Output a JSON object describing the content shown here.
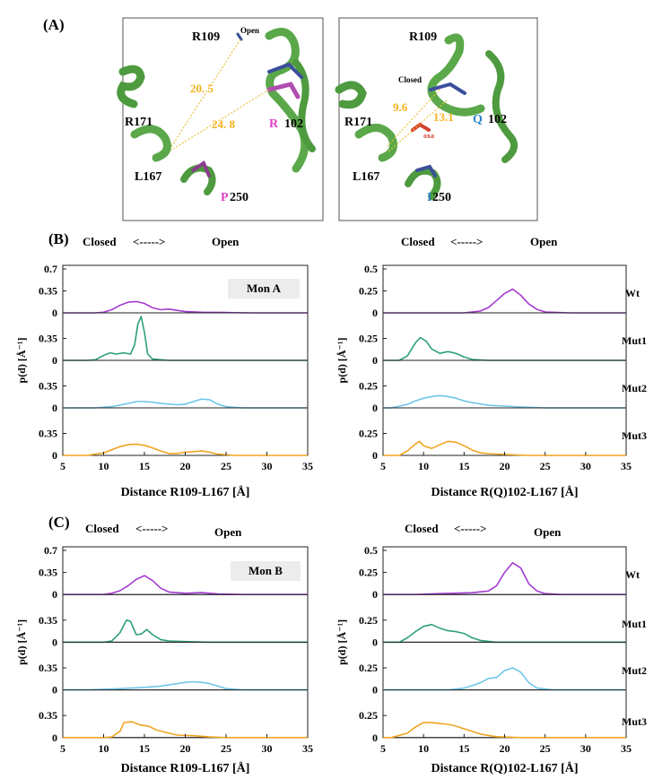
{
  "panels": {
    "a_label": "(A)",
    "b_label": "(B)",
    "c_label": "(C)"
  },
  "headers": {
    "closed": "Closed",
    "open": "Open",
    "arrow": "<----->"
  },
  "structures": {
    "left": {
      "res_top": "R109",
      "state": "Open",
      "res_mid": "R171",
      "res_low": "L167",
      "res_102_letter": "R",
      "res_102_num": "102",
      "res_250_letter": "P",
      "res_250_num": "250",
      "d1": "20. 5",
      "d2": "24. 8"
    },
    "right": {
      "res_top": "R109",
      "state": "Closed",
      "res_mid": "R171",
      "res_low": "L167",
      "res_102_letter": "Q",
      "res_102_num": "102",
      "res_250_letter": "I",
      "res_250_num": "250",
      "d1": "9.6",
      "d2": "13.1",
      "ligand": "oxa"
    }
  },
  "row_labels": [
    "Wt",
    "Mut1",
    "Mut2",
    "Mut3"
  ],
  "colors": {
    "Wt": "#a43bd0",
    "Mut1": "#2ea07a",
    "Mut2": "#6fc6ea",
    "Mut3": "#efa521"
  },
  "chart_data": [
    {
      "type": "line",
      "panel": "B-left",
      "badge": "Mon A",
      "xlabel": "Distance R109-L167 [Å]",
      "ylabel": "p(d) [Å⁻¹]",
      "xlim": [
        5,
        35
      ],
      "xticks": [
        "5",
        "10",
        "15",
        "20",
        "25",
        "30",
        "35"
      ],
      "top_yticks": [
        "0.7",
        "0.35",
        "0"
      ],
      "yticks": [
        "0.35",
        "0"
      ],
      "ymax_top": 0.7,
      "ymax": 0.7,
      "series": [
        {
          "name": "Wt",
          "points": [
            [
              9,
              0
            ],
            [
              10,
              0.01
            ],
            [
              11,
              0.05
            ],
            [
              12,
              0.12
            ],
            [
              13,
              0.17
            ],
            [
              14,
              0.18
            ],
            [
              15,
              0.15
            ],
            [
              16,
              0.08
            ],
            [
              17,
              0.05
            ],
            [
              18,
              0.06
            ],
            [
              19,
              0.04
            ],
            [
              20,
              0.02
            ],
            [
              22,
              0.01
            ],
            [
              25,
              0.005
            ],
            [
              28,
              0
            ]
          ]
        },
        {
          "name": "Mut1",
          "points": [
            [
              8,
              0
            ],
            [
              9,
              0.01
            ],
            [
              10,
              0.08
            ],
            [
              10.8,
              0.12
            ],
            [
              11.5,
              0.1
            ],
            [
              12.5,
              0.12
            ],
            [
              13.3,
              0.1
            ],
            [
              13.8,
              0.25
            ],
            [
              14.2,
              0.58
            ],
            [
              14.6,
              0.7
            ],
            [
              15,
              0.45
            ],
            [
              15.4,
              0.1
            ],
            [
              16,
              0.02
            ],
            [
              18,
              0
            ],
            [
              22,
              0
            ]
          ]
        },
        {
          "name": "Mut2",
          "points": [
            [
              9,
              0
            ],
            [
              11,
              0.02
            ],
            [
              13,
              0.07
            ],
            [
              14,
              0.1
            ],
            [
              15,
              0.1
            ],
            [
              16,
              0.09
            ],
            [
              17,
              0.07
            ],
            [
              19,
              0.05
            ],
            [
              20,
              0.06
            ],
            [
              21,
              0.1
            ],
            [
              22,
              0.14
            ],
            [
              23,
              0.13
            ],
            [
              24,
              0.06
            ],
            [
              25,
              0.02
            ],
            [
              27,
              0
            ]
          ]
        },
        {
          "name": "Mut3",
          "points": [
            [
              8,
              0
            ],
            [
              10,
              0.04
            ],
            [
              11,
              0.09
            ],
            [
              12,
              0.14
            ],
            [
              13,
              0.17
            ],
            [
              14,
              0.18
            ],
            [
              15,
              0.16
            ],
            [
              16,
              0.12
            ],
            [
              17,
              0.07
            ],
            [
              18,
              0.03
            ],
            [
              19,
              0.03
            ],
            [
              20,
              0.05
            ],
            [
              21,
              0.06
            ],
            [
              22,
              0.07
            ],
            [
              23,
              0.05
            ],
            [
              24,
              0.02
            ],
            [
              26,
              0
            ]
          ]
        }
      ]
    },
    {
      "type": "line",
      "panel": "B-right",
      "xlabel": "Distance R(Q)102-L167 [Å]",
      "ylabel": "p(d) [Å⁻¹]",
      "xlim": [
        5,
        35
      ],
      "xticks": [
        "5",
        "10",
        "15",
        "20",
        "25",
        "30",
        "35"
      ],
      "top_yticks": [
        "0.5",
        "0.25",
        "0"
      ],
      "yticks": [
        "0.25",
        "0"
      ],
      "ymax_top": 0.5,
      "ymax": 0.5,
      "series": [
        {
          "name": "Wt",
          "points": [
            [
              15,
              0
            ],
            [
              17,
              0.02
            ],
            [
              18,
              0.06
            ],
            [
              19,
              0.14
            ],
            [
              20,
              0.22
            ],
            [
              21,
              0.27
            ],
            [
              22,
              0.2
            ],
            [
              23,
              0.1
            ],
            [
              24,
              0.04
            ],
            [
              25,
              0.01
            ],
            [
              28,
              0
            ]
          ]
        },
        {
          "name": "Mut1",
          "points": [
            [
              7,
              0
            ],
            [
              8,
              0.05
            ],
            [
              9,
              0.2
            ],
            [
              9.6,
              0.26
            ],
            [
              10.3,
              0.22
            ],
            [
              11,
              0.13
            ],
            [
              12,
              0.08
            ],
            [
              13,
              0.1
            ],
            [
              14,
              0.08
            ],
            [
              15,
              0.04
            ],
            [
              16,
              0.01
            ],
            [
              18,
              0
            ]
          ]
        },
        {
          "name": "Mut2",
          "points": [
            [
              6,
              0
            ],
            [
              8,
              0.04
            ],
            [
              9,
              0.08
            ],
            [
              10,
              0.11
            ],
            [
              11,
              0.13
            ],
            [
              12,
              0.14
            ],
            [
              13,
              0.13
            ],
            [
              14,
              0.11
            ],
            [
              15,
              0.08
            ],
            [
              16,
              0.06
            ],
            [
              18,
              0.03
            ],
            [
              20,
              0.02
            ],
            [
              22,
              0.01
            ],
            [
              25,
              0
            ]
          ]
        },
        {
          "name": "Mut3",
          "points": [
            [
              7,
              0
            ],
            [
              8,
              0.05
            ],
            [
              9,
              0.13
            ],
            [
              9.5,
              0.16
            ],
            [
              10,
              0.11
            ],
            [
              11,
              0.08
            ],
            [
              12,
              0.12
            ],
            [
              13,
              0.16
            ],
            [
              14,
              0.15
            ],
            [
              15,
              0.11
            ],
            [
              16,
              0.06
            ],
            [
              17,
              0.03
            ],
            [
              18,
              0.02
            ],
            [
              20,
              0.01
            ],
            [
              23,
              0
            ]
          ]
        }
      ]
    },
    {
      "type": "line",
      "panel": "C-left",
      "badge": "Mon B",
      "xlabel": "Distance R109-L167 [Å]",
      "ylabel": "p(d) [Å⁻¹]",
      "xlim": [
        5,
        35
      ],
      "xticks": [
        "5",
        "10",
        "15",
        "20",
        "25",
        "30",
        "35"
      ],
      "top_yticks": [
        "0.7",
        "0.35",
        "0"
      ],
      "yticks": [
        "0.35",
        "0"
      ],
      "ymax_top": 0.7,
      "ymax": 0.7,
      "series": [
        {
          "name": "Wt",
          "points": [
            [
              10,
              0
            ],
            [
              11,
              0.02
            ],
            [
              12,
              0.06
            ],
            [
              13,
              0.14
            ],
            [
              14,
              0.24
            ],
            [
              15,
              0.3
            ],
            [
              16,
              0.22
            ],
            [
              17,
              0.1
            ],
            [
              18,
              0.04
            ],
            [
              20,
              0.02
            ],
            [
              22,
              0.03
            ],
            [
              24,
              0.01
            ],
            [
              27,
              0
            ]
          ]
        },
        {
          "name": "Mut1",
          "points": [
            [
              10,
              0
            ],
            [
              11,
              0.02
            ],
            [
              12,
              0.15
            ],
            [
              12.8,
              0.35
            ],
            [
              13.3,
              0.33
            ],
            [
              14,
              0.12
            ],
            [
              14.6,
              0.13
            ],
            [
              15.3,
              0.2
            ],
            [
              16,
              0.12
            ],
            [
              17,
              0.04
            ],
            [
              18,
              0.02
            ],
            [
              20,
              0.01
            ],
            [
              23,
              0
            ]
          ]
        },
        {
          "name": "Mut2",
          "points": [
            [
              8,
              0
            ],
            [
              12,
              0.02
            ],
            [
              15,
              0.04
            ],
            [
              17,
              0.06
            ],
            [
              19,
              0.1
            ],
            [
              20,
              0.12
            ],
            [
              21,
              0.13
            ],
            [
              22,
              0.12
            ],
            [
              23,
              0.1
            ],
            [
              24,
              0.06
            ],
            [
              25,
              0.02
            ],
            [
              27,
              0
            ]
          ]
        },
        {
          "name": "Mut3",
          "points": [
            [
              10,
              0
            ],
            [
              11,
              0.01
            ],
            [
              12,
              0.1
            ],
            [
              12.5,
              0.24
            ],
            [
              13.5,
              0.25
            ],
            [
              14.5,
              0.2
            ],
            [
              15.5,
              0.18
            ],
            [
              16.5,
              0.12
            ],
            [
              18,
              0.07
            ],
            [
              19,
              0.04
            ],
            [
              21,
              0.03
            ],
            [
              23,
              0.01
            ],
            [
              25,
              0
            ]
          ]
        }
      ]
    },
    {
      "type": "line",
      "panel": "C-right",
      "xlabel": "Distance R(Q)102-L167 [Å]",
      "ylabel": "p(d) [Å⁻¹]",
      "xlim": [
        5,
        35
      ],
      "xticks": [
        "5",
        "10",
        "15",
        "20",
        "25",
        "30",
        "35"
      ],
      "top_yticks": [
        "0.5",
        "0.25",
        "0"
      ],
      "yticks": [
        "0.25",
        "0"
      ],
      "ymax_top": 0.5,
      "ymax": 0.5,
      "series": [
        {
          "name": "Wt",
          "points": [
            [
              9,
              0
            ],
            [
              12,
              0.01
            ],
            [
              16,
              0.02
            ],
            [
              18,
              0.04
            ],
            [
              19,
              0.1
            ],
            [
              20,
              0.25
            ],
            [
              21,
              0.36
            ],
            [
              22,
              0.3
            ],
            [
              23,
              0.12
            ],
            [
              24,
              0.04
            ],
            [
              25,
              0.01
            ],
            [
              27,
              0
            ]
          ]
        },
        {
          "name": "Mut1",
          "points": [
            [
              7,
              0
            ],
            [
              8,
              0.05
            ],
            [
              9,
              0.12
            ],
            [
              10,
              0.18
            ],
            [
              11,
              0.2
            ],
            [
              12,
              0.16
            ],
            [
              13,
              0.13
            ],
            [
              14,
              0.12
            ],
            [
              15,
              0.1
            ],
            [
              16,
              0.05
            ],
            [
              17,
              0.02
            ],
            [
              19,
              0
            ]
          ]
        },
        {
          "name": "Mut2",
          "points": [
            [
              13,
              0
            ],
            [
              15,
              0.02
            ],
            [
              16,
              0.05
            ],
            [
              17,
              0.08
            ],
            [
              18,
              0.13
            ],
            [
              19,
              0.14
            ],
            [
              20,
              0.22
            ],
            [
              21,
              0.25
            ],
            [
              22,
              0.2
            ],
            [
              23,
              0.08
            ],
            [
              24,
              0.02
            ],
            [
              26,
              0
            ]
          ]
        },
        {
          "name": "Mut3",
          "points": [
            [
              6,
              0
            ],
            [
              8,
              0.05
            ],
            [
              9,
              0.12
            ],
            [
              10,
              0.17
            ],
            [
              11,
              0.17
            ],
            [
              12,
              0.16
            ],
            [
              13,
              0.15
            ],
            [
              14,
              0.13
            ],
            [
              15,
              0.1
            ],
            [
              16,
              0.07
            ],
            [
              17,
              0.04
            ],
            [
              19,
              0.01
            ],
            [
              22,
              0
            ]
          ]
        }
      ]
    }
  ]
}
